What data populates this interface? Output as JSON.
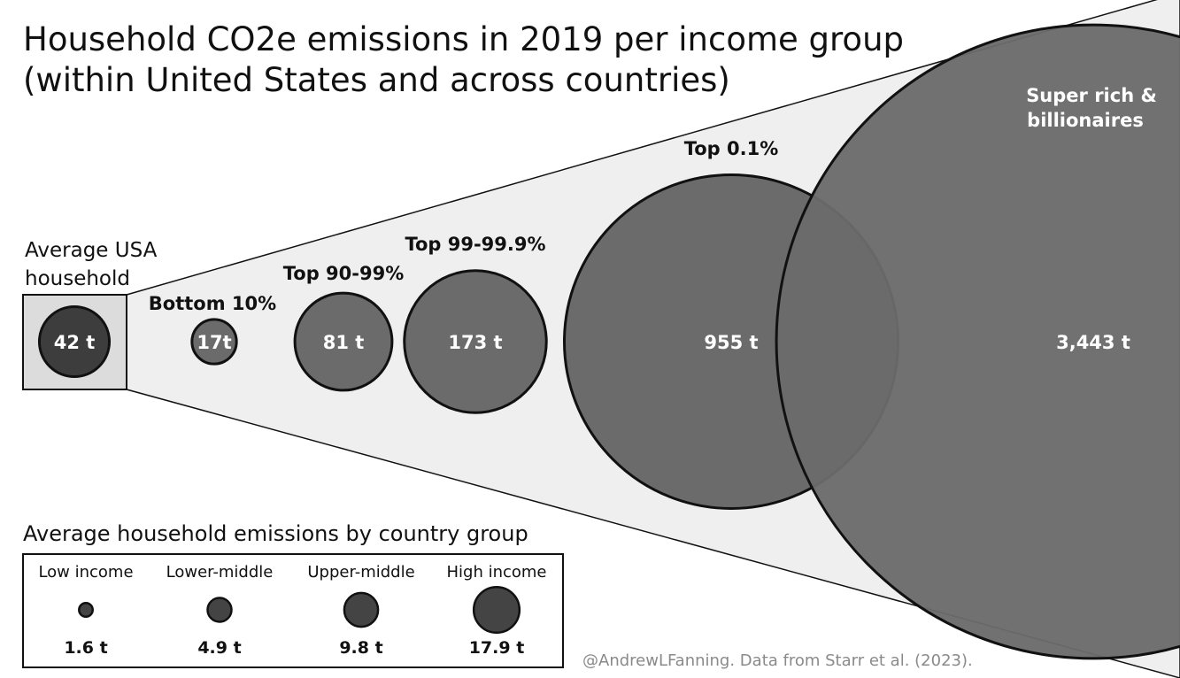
{
  "title_line1": "Household CO2e emissions in 2019 per income group",
  "title_line2": "(within United States and across countries)",
  "credit": "@AndrewLFanning. Data from Starr et al. (2023).",
  "chart_data": {
    "type": "bubble",
    "unit": "t",
    "reference": {
      "label_line1": "Average USA",
      "label_line2": "household",
      "value": 42,
      "value_label": "42 t",
      "color": "#3d3d3d"
    },
    "series": [
      {
        "label_line1": "Bottom 10%",
        "label_line2": "",
        "value": 17,
        "value_label": "17t",
        "color": "#6b6b6b"
      },
      {
        "label_line1": "Top 90-99%",
        "label_line2": "",
        "value": 81,
        "value_label": "81 t",
        "color": "#6b6b6b"
      },
      {
        "label_line1": "Top 99-99.9%",
        "label_line2": "",
        "value": 173,
        "value_label": "173 t",
        "color": "#6b6b6b"
      },
      {
        "label_line1": "Top 0.1%",
        "label_line2": "",
        "value": 955,
        "value_label": "955 t",
        "color": "#6b6b6b"
      },
      {
        "label_line1": "Super rich &",
        "label_line2": "billionaires",
        "value": 3443,
        "value_label": "3,443 t",
        "color": "#6b6b6b"
      }
    ],
    "legend": {
      "title": "Average household emissions by country group",
      "items": [
        {
          "label": "Low income",
          "value": 1.6,
          "value_label": "1.6 t"
        },
        {
          "label": "Lower-middle",
          "value": 4.9,
          "value_label": "4.9 t"
        },
        {
          "label": "Upper-middle",
          "value": 9.8,
          "value_label": "9.8 t"
        },
        {
          "label": "High income",
          "value": 17.9,
          "value_label": "17.9 t"
        }
      ],
      "color": "#444444"
    }
  }
}
